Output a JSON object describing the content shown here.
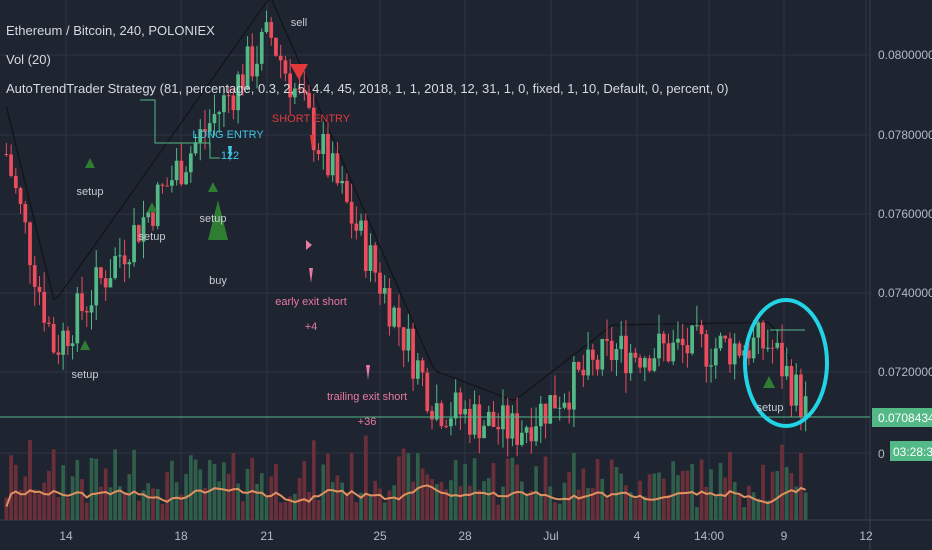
{
  "header": {
    "symbol_line": "Ethereum / Bitcoin, 240, POLONIEX",
    "vol_line": "Vol (20)",
    "strategy_line": "AutoTrendTrader Strategy (81, percentage, 0.3, 2, 5, 4.4, 45, 2018, 1, 1, 2018, 12, 31, 1, 0, fixed, 1, 10, Default, 0, percent, 0)"
  },
  "price_axis": {
    "ticks": [
      "0.08000000",
      "0.07800000",
      "0.07600000",
      "0.07400000",
      "0.07200000",
      "0"
    ],
    "last_price": "0.07084348",
    "countdown": "03:28:32"
  },
  "colors": {
    "background": "#1e2430",
    "up": "#53b987",
    "down": "#eb4d5c",
    "long_marker": "#3ec8e8",
    "short_marker": "#e23a3a",
    "exit_marker": "#e879a0",
    "setup_marker": "#2e7d32",
    "highlight_circle": "#22d3e6",
    "ma_line": "#111318",
    "vol_ma": "#e0915f"
  },
  "annotations": {
    "sell": "sell",
    "buy": "buy",
    "long_entry": "LONG ENTRY",
    "long_entry_qty": "122",
    "short_entry": "SHORT ENTRY",
    "early_exit": "early exit short",
    "early_exit_val": "+4",
    "trailing_exit": "trailing exit short",
    "trailing_exit_val": "+36",
    "setup": "setup",
    "fragment": "setup"
  },
  "chart_data": {
    "type": "candlestick",
    "title": "Ethereum / Bitcoin, 240, POLONIEX",
    "ylim": [
      0.0695,
      0.0815
    ],
    "y_ticks": [
      0.08,
      0.078,
      0.076,
      0.074,
      0.072
    ],
    "x_tick_labels": [
      "14",
      "18",
      "21",
      "25",
      "28",
      "Jul",
      "4",
      "14:00",
      "9",
      "12"
    ],
    "key_points": [
      {
        "label": "start",
        "value": 0.0775
      },
      {
        "label": "low-near-16",
        "value": 0.0726
      },
      {
        "label": "peak-21",
        "value": 0.0805
      },
      {
        "label": "trailing-exit-low",
        "value": 0.0712
      },
      {
        "label": "bottom-29",
        "value": 0.0705
      },
      {
        "label": "bump-3",
        "value": 0.0725
      },
      {
        "label": "spike-8",
        "value": 0.0727
      },
      {
        "label": "last",
        "value": 0.07084348
      }
    ]
  }
}
